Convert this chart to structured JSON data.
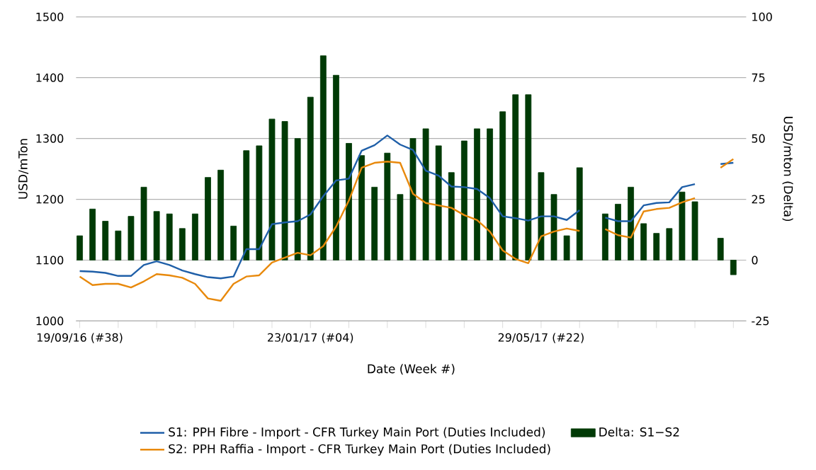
{
  "chart_data": {
    "type": "line",
    "xlabel": "Date (Week #)",
    "ylabel": "USD/mTon",
    "y2label": "USD/mton (Delta)",
    "x": [
      "2016-09-19",
      "2016-09-26",
      "2016-10-03",
      "2016-10-10",
      "2016-10-17",
      "2016-10-24",
      "2016-10-31",
      "2016-11-07",
      "2016-11-14",
      "2016-11-21",
      "2016-11-28",
      "2016-12-05",
      "2016-12-12",
      "2016-12-19",
      "2016-12-26",
      "2017-01-02",
      "2017-01-09",
      "2017-01-16",
      "2017-01-23",
      "2017-01-30",
      "2017-02-06",
      "2017-02-13",
      "2017-02-20",
      "2017-02-27",
      "2017-03-06",
      "2017-03-13",
      "2017-03-20",
      "2017-03-27",
      "2017-04-03",
      "2017-04-10",
      "2017-04-17",
      "2017-04-24",
      "2017-05-01",
      "2017-05-08",
      "2017-05-15",
      "2017-05-22",
      "2017-05-29",
      "2017-06-05",
      "2017-06-12",
      "2017-06-19",
      "2017-06-26",
      "2017-07-03",
      "2017-07-10",
      "2017-07-17",
      "2017-07-24",
      "2017-07-31",
      "2017-08-07",
      "2017-08-14",
      "2017-08-21",
      "2017-08-28",
      "2017-09-04",
      "2017-09-11"
    ],
    "series": [
      {
        "name": "S1: PPH Fibre - Import - CFR Turkey Main Port (Duties Included)",
        "color": "#1f5fa8",
        "values": [
          1082,
          1081,
          1079,
          1074,
          1074,
          1092,
          1098,
          1092,
          1083,
          1077,
          1072,
          1070,
          1073,
          1118,
          1118,
          1159,
          1162,
          1164,
          1175,
          1205,
          1231,
          1234,
          1280,
          1289,
          1305,
          1290,
          1281,
          1247,
          1239,
          1221,
          1220,
          1217,
          1202,
          1172,
          1169,
          1165,
          1172,
          1172,
          1166,
          1182,
          null,
          1170,
          1164,
          1164,
          1190,
          1194,
          1195,
          1220,
          1225,
          null,
          1258,
          1260
        ]
      },
      {
        "name": "S2: PPH Raffia - Import - CFR Turkey Main Port (Duties Included)",
        "color": "#e8890c",
        "values": [
          1073,
          1059,
          1061,
          1061,
          1055,
          1065,
          1077,
          1075,
          1071,
          1061,
          1037,
          1033,
          1061,
          1073,
          1075,
          1096,
          1104,
          1112,
          1108,
          1123,
          1155,
          1198,
          1252,
          1260,
          1262,
          1260,
          1209,
          1194,
          1190,
          1186,
          1174,
          1166,
          1147,
          1116,
          1102,
          1095,
          1139,
          1147,
          1152,
          1148,
          null,
          1151,
          1141,
          1137,
          1180,
          1184,
          1186,
          1195,
          1202,
          null,
          1252,
          1266
        ]
      },
      {
        "name": "Delta: S1−S2",
        "type": "bar",
        "axis": "y2",
        "color": "#003a06",
        "values": [
          10,
          21,
          16,
          12,
          18,
          30,
          20,
          19,
          13,
          19,
          34,
          37,
          14,
          45,
          47,
          58,
          57,
          50,
          67,
          84,
          76,
          48,
          43,
          30,
          44,
          27,
          50,
          54,
          47,
          36,
          49,
          54,
          54,
          61,
          68,
          68,
          36,
          27,
          10,
          38,
          null,
          19,
          23,
          30,
          15,
          11,
          13,
          28,
          24,
          null,
          9,
          -6
        ]
      }
    ],
    "xlim": [
      "2016-09-17",
      "2017-09-18"
    ],
    "xticks": [
      {
        "value": "2016-09-19",
        "label": "19/09/16 (#38)"
      },
      {
        "value": "2016-10-10",
        "label": null
      },
      {
        "value": "2016-10-31",
        "label": null
      },
      {
        "value": "2016-11-21",
        "label": null
      },
      {
        "value": "2016-12-12",
        "label": null
      },
      {
        "value": "2017-01-02",
        "label": null
      },
      {
        "value": "2017-01-23",
        "label": "23/01/17 (#04)"
      },
      {
        "value": "2017-02-13",
        "label": null
      },
      {
        "value": "2017-03-06",
        "label": null
      },
      {
        "value": "2017-03-27",
        "label": null
      },
      {
        "value": "2017-04-17",
        "label": null
      },
      {
        "value": "2017-05-08",
        "label": null
      },
      {
        "value": "2017-05-29",
        "label": "29/05/17 (#22)"
      },
      {
        "value": "2017-06-19",
        "label": null
      },
      {
        "value": "2017-07-10",
        "label": null
      },
      {
        "value": "2017-07-31",
        "label": null
      },
      {
        "value": "2017-08-21",
        "label": null
      },
      {
        "value": "2017-09-11",
        "label": null
      }
    ],
    "ylim": [
      1000,
      1500
    ],
    "yticks": [
      1000,
      1100,
      1200,
      1300,
      1400,
      1500
    ],
    "y2lim": [
      -25,
      100
    ],
    "y2ticks": [
      -25,
      0,
      25,
      50,
      75,
      100
    ],
    "grid": "y",
    "legend": "bottom"
  }
}
